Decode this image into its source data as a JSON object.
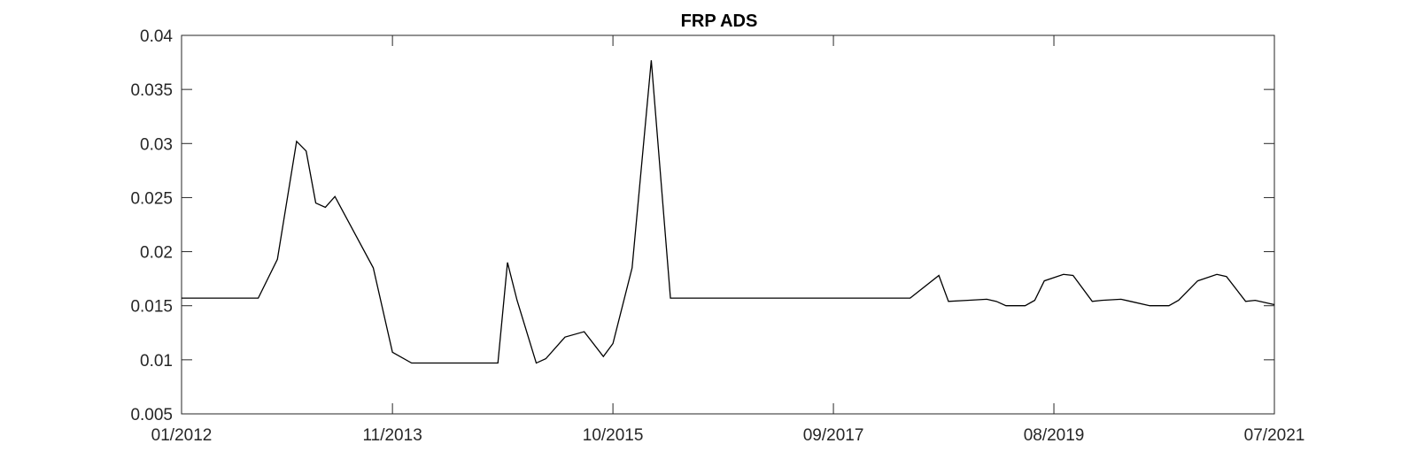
{
  "chart_data": {
    "type": "line",
    "title": "FRP ADS",
    "xlabel": "",
    "ylabel": "",
    "xlim": [
      "2012-01",
      "2021-07"
    ],
    "ylim": [
      0.005,
      0.04
    ],
    "grid": false,
    "legend": "none",
    "x_tick_labels": [
      "01/2012",
      "11/2013",
      "10/2015",
      "09/2017",
      "08/2019",
      "07/2021"
    ],
    "y_tick_labels": [
      "0.005",
      "0.01",
      "0.015",
      "0.02",
      "0.025",
      "0.03",
      "0.035",
      "0.04"
    ],
    "line_color": "#000000",
    "series": [
      {
        "x": [
          "2012-01",
          "2012-09",
          "2012-11",
          "2013-01",
          "2013-02",
          "2013-03",
          "2013-04",
          "2013-05",
          "2013-09",
          "2013-11",
          "2014-01",
          "2014-02",
          "2014-04",
          "2014-06",
          "2014-08",
          "2014-10",
          "2014-11",
          "2014-12",
          "2015-02",
          "2015-03",
          "2015-05",
          "2015-07",
          "2015-09",
          "2015-10",
          "2015-12",
          "2016-02",
          "2016-04",
          "2016-05",
          "2018-05",
          "2018-08",
          "2018-09",
          "2018-11",
          "2019-01",
          "2019-02",
          "2019-03",
          "2019-05",
          "2019-06",
          "2019-07",
          "2019-09",
          "2019-10",
          "2019-12",
          "2020-01",
          "2020-03",
          "2020-04",
          "2020-06",
          "2020-08",
          "2020-09",
          "2020-11",
          "2021-01",
          "2021-02",
          "2021-04",
          "2021-05",
          "2021-07"
        ],
        "values": [
          0.0157,
          0.0157,
          0.0193,
          0.0302,
          0.0293,
          0.0245,
          0.0241,
          0.0251,
          0.0185,
          0.0107,
          0.0097,
          0.0097,
          0.0097,
          0.0097,
          0.0097,
          0.0097,
          0.019,
          0.0155,
          0.0097,
          0.0101,
          0.0121,
          0.0126,
          0.0103,
          0.0115,
          0.0185,
          0.0377,
          0.0157,
          0.0157,
          0.0157,
          0.0178,
          0.0154,
          0.0155,
          0.0156,
          0.0154,
          0.015,
          0.015,
          0.0155,
          0.0173,
          0.0179,
          0.0178,
          0.0154,
          0.0155,
          0.0156,
          0.0154,
          0.015,
          0.015,
          0.0155,
          0.0173,
          0.0179,
          0.0177,
          0.0154,
          0.0155,
          0.0151
        ]
      }
    ]
  }
}
